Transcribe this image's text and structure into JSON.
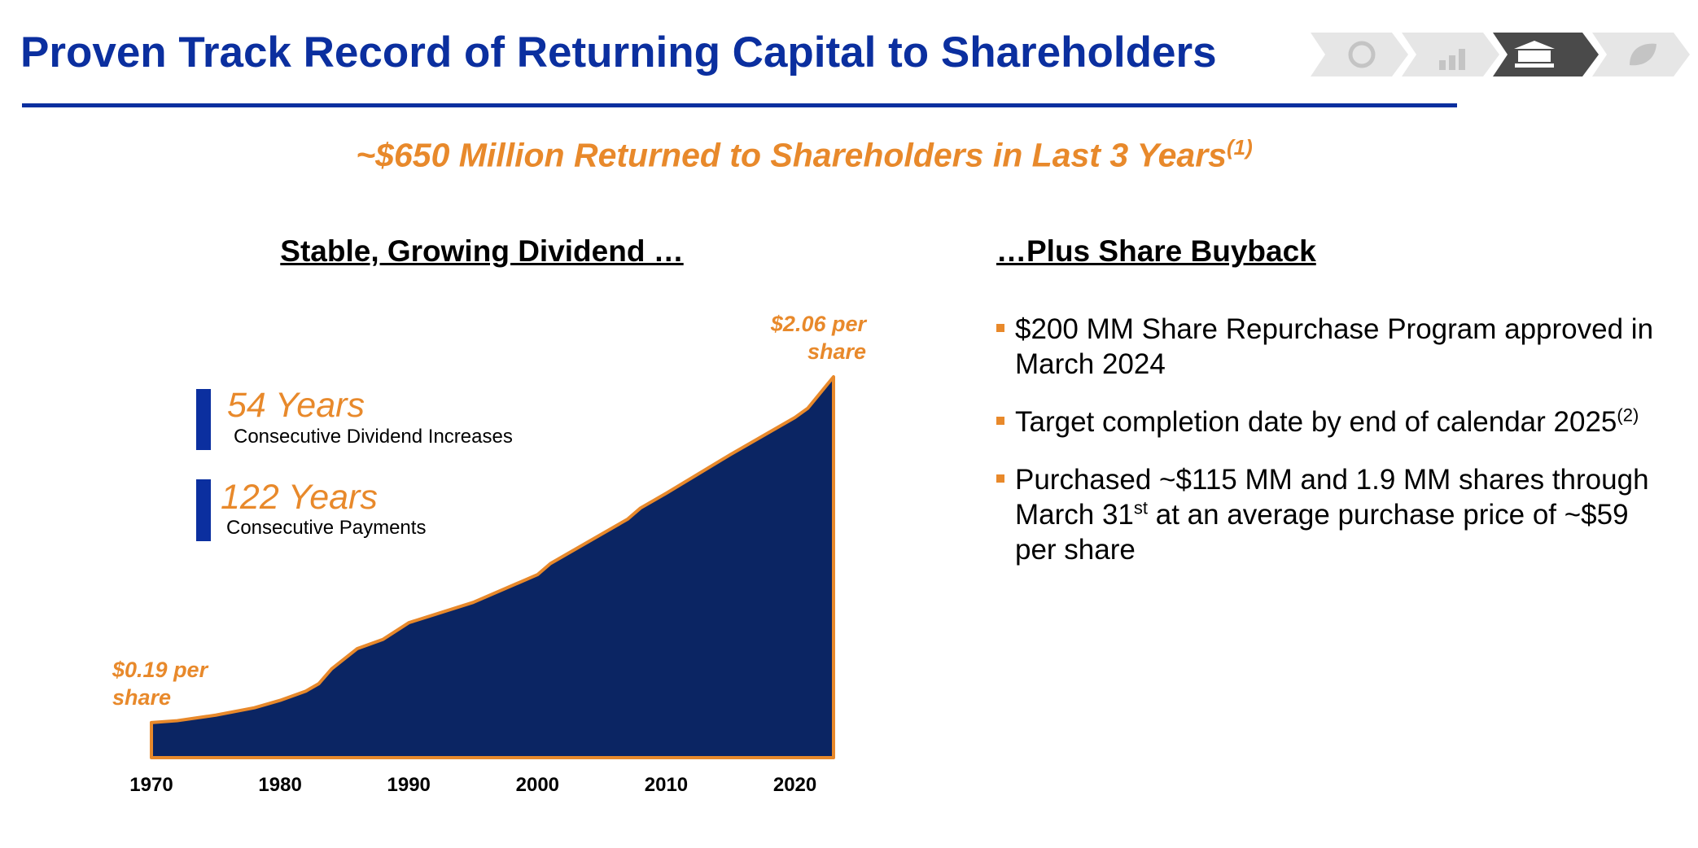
{
  "header": {
    "title": "Proven Track Record of Returning Capital to Shareholders",
    "subtitle": "~$650 Million Returned to Shareholders in Last 3 Years",
    "subtitle_note": "(1)"
  },
  "left": {
    "heading": "Stable, Growing Dividend …",
    "stats": [
      {
        "value": "54 Years",
        "label": "Consecutive Dividend Increases"
      },
      {
        "value": "122 Years",
        "label": "Consecutive Payments"
      }
    ]
  },
  "chart_data": {
    "type": "area",
    "x": [
      1970,
      1972,
      1975,
      1978,
      1980,
      1982,
      1983,
      1984,
      1986,
      1988,
      1990,
      1995,
      2000,
      2001,
      2005,
      2007,
      2008,
      2010,
      2015,
      2020,
      2021,
      2023
    ],
    "values": [
      0.19,
      0.2,
      0.23,
      0.27,
      0.31,
      0.36,
      0.4,
      0.48,
      0.59,
      0.64,
      0.73,
      0.84,
      0.99,
      1.05,
      1.21,
      1.29,
      1.35,
      1.43,
      1.64,
      1.84,
      1.89,
      2.06
    ],
    "value_labels": [
      "$0.19 per share",
      null,
      null,
      null,
      null,
      null,
      null,
      null,
      null,
      null,
      null,
      null,
      null,
      null,
      null,
      null,
      null,
      null,
      null,
      null,
      null,
      "$2.06 per share"
    ],
    "color": "#0b2563",
    "line_color": "#e8892b",
    "xlim": [
      1970,
      2023
    ],
    "xticks": [
      1970,
      1980,
      1990,
      2000,
      2010,
      2020
    ]
  },
  "right": {
    "heading": "…Plus Share Buyback",
    "bullets": [
      [
        {
          "text": "$200 MM Share Repurchase Program approved in March 2024"
        }
      ],
      [
        {
          "text": "Target completion date by end of calendar 2025"
        },
        {
          "text": "(2)",
          "sup": true
        }
      ],
      [
        {
          "text": "Purchased ~$115 MM and 1.9 MM shares through March 31"
        },
        {
          "text": "st",
          "sup": true
        },
        {
          "text": " at an average purchase price of ~$59 per share"
        }
      ]
    ]
  }
}
